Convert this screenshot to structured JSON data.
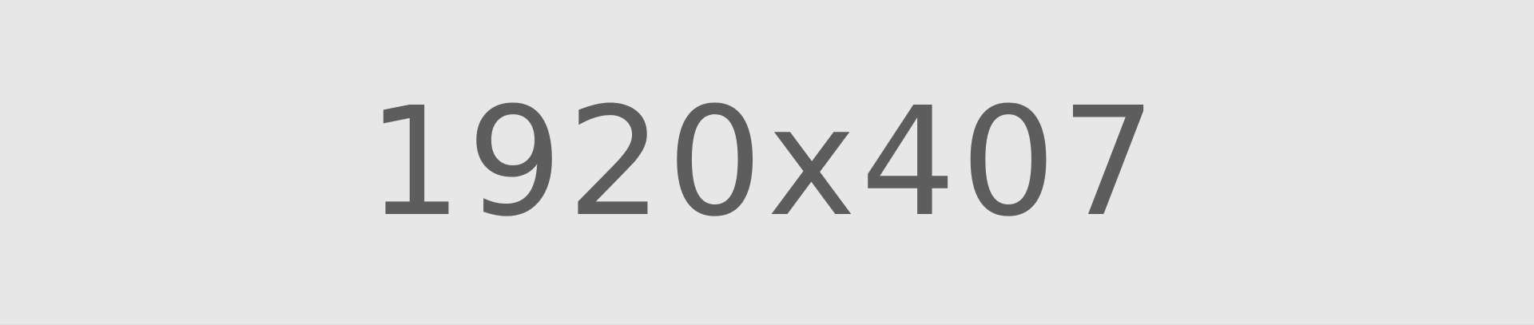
{
  "placeholder": {
    "label": "1920x407",
    "background_color": "#e7e7e7",
    "text_color": "#5d5d5d"
  }
}
